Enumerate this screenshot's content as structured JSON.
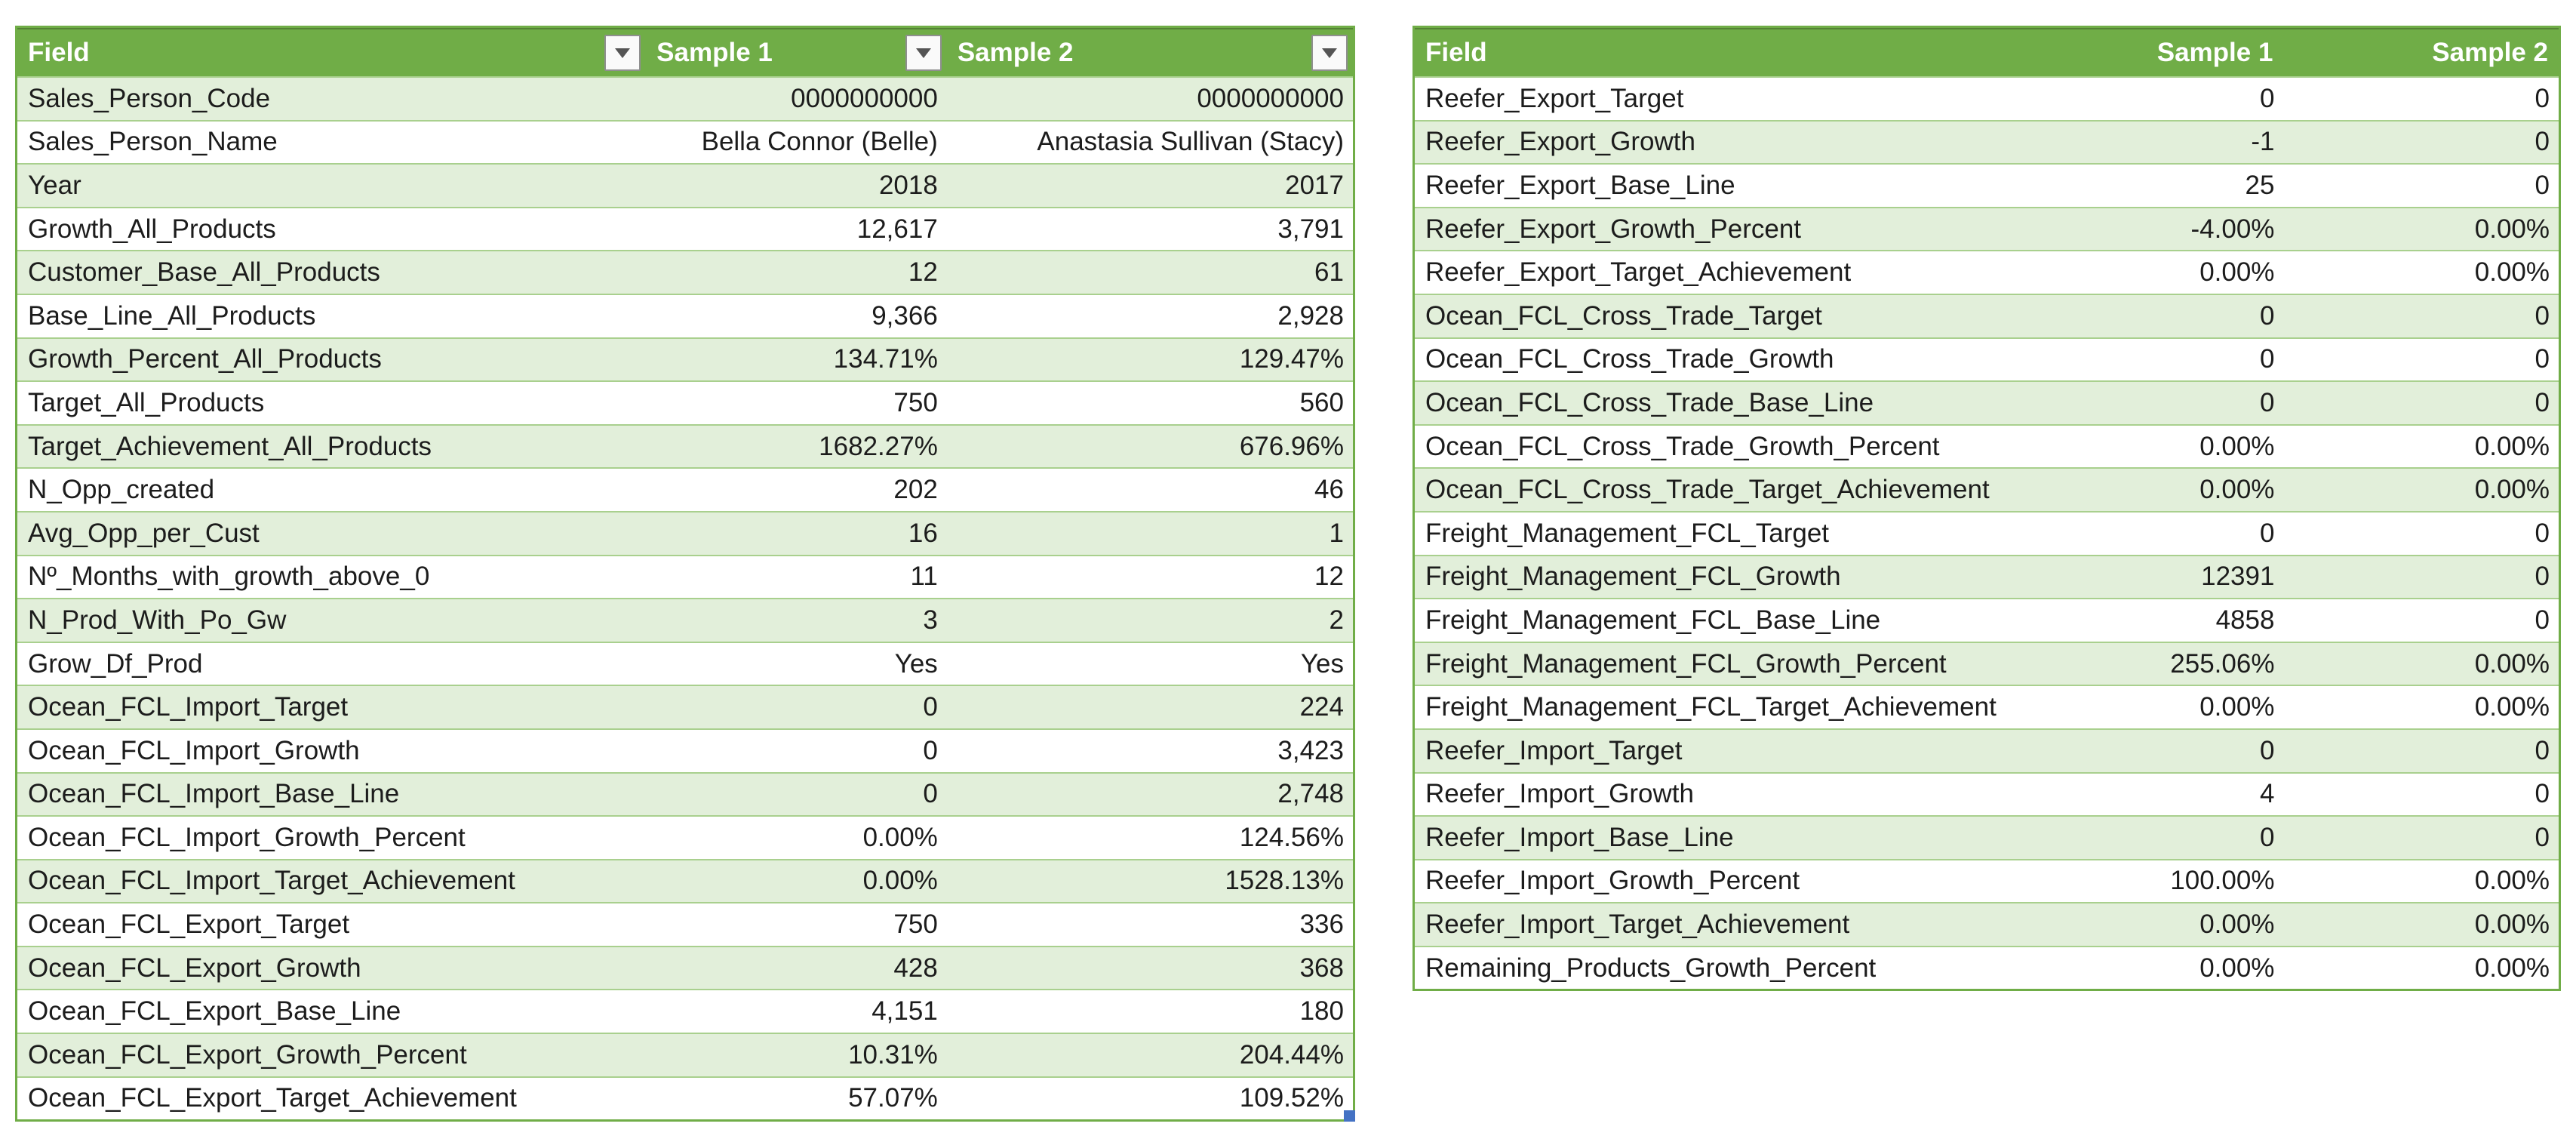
{
  "colors": {
    "header_bg": "#70AD47",
    "header_text": "#FFFFFF",
    "band_green": "#E2EFDA",
    "band_white": "#FFFFFF",
    "row_border": "#A9D08E",
    "outer_border": "#70AD47",
    "resize_handle_blue": "#4472C4"
  },
  "left_table": {
    "headers": {
      "field": "Field",
      "sample1": "Sample 1",
      "sample2": "Sample 2"
    },
    "has_filter_buttons": true,
    "rows": [
      {
        "field": "Sales_Person_Code",
        "sample1": "0000000000",
        "sample2": "0000000000"
      },
      {
        "field": "Sales_Person_Name",
        "sample1": "Bella Connor (Belle)",
        "sample2": "Anastasia Sullivan (Stacy)"
      },
      {
        "field": "Year",
        "sample1": "2018",
        "sample2": "2017"
      },
      {
        "field": "Growth_All_Products",
        "sample1": "12,617",
        "sample2": "3,791"
      },
      {
        "field": "Customer_Base_All_Products",
        "sample1": "12",
        "sample2": "61"
      },
      {
        "field": "Base_Line_All_Products",
        "sample1": "9,366",
        "sample2": "2,928"
      },
      {
        "field": "Growth_Percent_All_Products",
        "sample1": "134.71%",
        "sample2": "129.47%"
      },
      {
        "field": "Target_All_Products",
        "sample1": "750",
        "sample2": "560"
      },
      {
        "field": "Target_Achievement_All_Products",
        "sample1": "1682.27%",
        "sample2": "676.96%"
      },
      {
        "field": "N_Opp_created",
        "sample1": "202",
        "sample2": "46"
      },
      {
        "field": "Avg_Opp_per_Cust",
        "sample1": "16",
        "sample2": "1"
      },
      {
        "field": "Nº_Months_with_growth_above_0",
        "sample1": "11",
        "sample2": "12"
      },
      {
        "field": "N_Prod_With_Po_Gw",
        "sample1": "3",
        "sample2": "2"
      },
      {
        "field": "Grow_Df_Prod",
        "sample1": "Yes",
        "sample2": "Yes"
      },
      {
        "field": "Ocean_FCL_Import_Target",
        "sample1": "0",
        "sample2": "224"
      },
      {
        "field": "Ocean_FCL_Import_Growth",
        "sample1": "0",
        "sample2": "3,423"
      },
      {
        "field": "Ocean_FCL_Import_Base_Line",
        "sample1": "0",
        "sample2": "2,748"
      },
      {
        "field": "Ocean_FCL_Import_Growth_Percent",
        "sample1": "0.00%",
        "sample2": "124.56%"
      },
      {
        "field": "Ocean_FCL_Import_Target_Achievement",
        "sample1": "0.00%",
        "sample2": "1528.13%"
      },
      {
        "field": "Ocean_FCL_Export_Target",
        "sample1": "750",
        "sample2": "336"
      },
      {
        "field": "Ocean_FCL_Export_Growth",
        "sample1": "428",
        "sample2": "368"
      },
      {
        "field": "Ocean_FCL_Export_Base_Line",
        "sample1": "4,151",
        "sample2": "180"
      },
      {
        "field": "Ocean_FCL_Export_Growth_Percent",
        "sample1": "10.31%",
        "sample2": "204.44%"
      },
      {
        "field": "Ocean_FCL_Export_Target_Achievement",
        "sample1": "57.07%",
        "sample2": "109.52%"
      }
    ]
  },
  "right_table": {
    "headers": {
      "field": "Field",
      "sample1": "Sample 1",
      "sample2": "Sample 2"
    },
    "has_filter_buttons": false,
    "rows": [
      {
        "field": "Reefer_Export_Target",
        "sample1": "0",
        "sample2": "0"
      },
      {
        "field": "Reefer_Export_Growth",
        "sample1": "-1",
        "sample2": "0"
      },
      {
        "field": "Reefer_Export_Base_Line",
        "sample1": "25",
        "sample2": "0"
      },
      {
        "field": "Reefer_Export_Growth_Percent",
        "sample1": "-4.00%",
        "sample2": "0.00%"
      },
      {
        "field": "Reefer_Export_Target_Achievement",
        "sample1": "0.00%",
        "sample2": "0.00%"
      },
      {
        "field": "Ocean_FCL_Cross_Trade_Target",
        "sample1": "0",
        "sample2": "0"
      },
      {
        "field": "Ocean_FCL_Cross_Trade_Growth",
        "sample1": "0",
        "sample2": "0"
      },
      {
        "field": "Ocean_FCL_Cross_Trade_Base_Line",
        "sample1": "0",
        "sample2": "0"
      },
      {
        "field": "Ocean_FCL_Cross_Trade_Growth_Percent",
        "sample1": "0.00%",
        "sample2": "0.00%"
      },
      {
        "field": "Ocean_FCL_Cross_Trade_Target_Achievement",
        "sample1": "0.00%",
        "sample2": "0.00%"
      },
      {
        "field": "Freight_Management_FCL_Target",
        "sample1": "0",
        "sample2": "0"
      },
      {
        "field": "Freight_Management_FCL_Growth",
        "sample1": "12391",
        "sample2": "0"
      },
      {
        "field": "Freight_Management_FCL_Base_Line",
        "sample1": "4858",
        "sample2": "0"
      },
      {
        "field": "Freight_Management_FCL_Growth_Percent",
        "sample1": "255.06%",
        "sample2": "0.00%"
      },
      {
        "field": "Freight_Management_FCL_Target_Achievement",
        "sample1": "0.00%",
        "sample2": "0.00%"
      },
      {
        "field": "Reefer_Import_Target",
        "sample1": "0",
        "sample2": "0"
      },
      {
        "field": "Reefer_Import_Growth",
        "sample1": "4",
        "sample2": "0"
      },
      {
        "field": "Reefer_Import_Base_Line",
        "sample1": "0",
        "sample2": "0"
      },
      {
        "field": "Reefer_Import_Growth_Percent",
        "sample1": "100.00%",
        "sample2": "0.00%"
      },
      {
        "field": "Reefer_Import_Target_Achievement",
        "sample1": "0.00%",
        "sample2": "0.00%"
      },
      {
        "field": "Remaining_Products_Growth_Percent",
        "sample1": "0.00%",
        "sample2": "0.00%"
      }
    ]
  }
}
